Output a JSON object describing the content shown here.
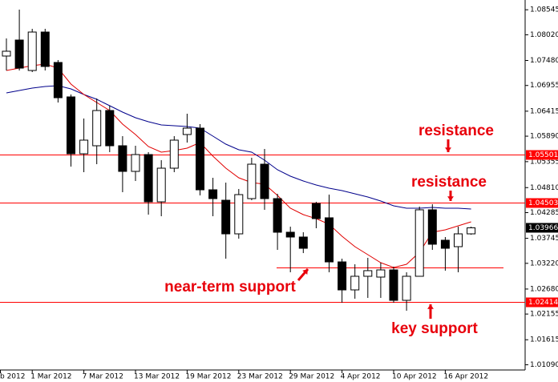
{
  "chart_data": {
    "type": "candlestick",
    "categories": [
      "b 2012",
      null,
      null,
      "1 Mar 2012",
      null,
      null,
      null,
      "7 Mar 2012",
      null,
      null,
      null,
      "13 Mar 2012",
      null,
      null,
      null,
      "19 Mar 2012",
      null,
      null,
      null,
      "23 Mar 2012",
      null,
      null,
      null,
      "29 Mar 2012",
      null,
      null,
      null,
      "4 Apr 2012",
      null,
      null,
      null,
      "10 Apr 2012",
      null,
      null,
      null,
      "16 Apr 2012",
      null,
      null
    ],
    "open": [
      null,
      1.07573,
      1.07909,
      1.0727,
      1.08077,
      1.07438,
      1.06715,
      1.05521,
      1.05689,
      1.06429,
      1.05689,
      1.05151,
      1.05504,
      1.04512,
      1.05218,
      1.05925,
      1.06059,
      1.04764,
      1.04545,
      1.03839,
      1.04579,
      1.05302,
      1.04579,
      1.03873,
      1.03772,
      1.04478,
      1.04176,
      1.0325,
      1.02662,
      1.02948,
      1.02931,
      1.03082,
      1.02443,
      1.02948,
      1.04344,
      1.03705,
      1.0357,
      1.03839
    ],
    "high": [
      null,
      1.07943,
      1.08548,
      1.08145,
      1.08145,
      1.07489,
      1.06765,
      1.06261,
      1.06681,
      1.0653,
      1.05891,
      1.05689,
      1.05555,
      1.05386,
      1.05891,
      1.06362,
      1.06143,
      1.05016,
      1.04915,
      1.04781,
      1.05437,
      1.05622,
      1.0468,
      1.0399,
      1.03873,
      1.04512,
      1.04663,
      1.03318,
      1.032,
      1.03335,
      1.03234,
      1.0315,
      1.03032,
      1.04411,
      1.04461,
      1.03772,
      1.0399,
      1.0399
    ],
    "low": [
      null,
      1.0727,
      1.0727,
      1.07236,
      1.0727,
      1.06597,
      1.05252,
      1.05134,
      1.05302,
      1.05555,
      1.04714,
      1.04949,
      1.04243,
      1.04209,
      1.05134,
      1.05756,
      1.04646,
      1.04209,
      1.03318,
      1.03738,
      1.04545,
      1.04344,
      1.03503,
      1.03032,
      1.03435,
      1.03957,
      1.03032,
      1.02393,
      1.02477,
      1.02494,
      1.02494,
      1.02393,
      1.02225,
      1.02948,
      1.03503,
      1.03066,
      1.03032,
      1.0382
    ],
    "close": [
      null,
      1.07674,
      1.0732,
      1.08077,
      1.07354,
      1.06698,
      1.05521,
      1.05807,
      1.06429,
      1.05689,
      1.05151,
      1.05504,
      1.04512,
      1.05218,
      1.05807,
      1.06059,
      1.04764,
      1.04579,
      1.03839,
      1.04663,
      1.05302,
      1.04579,
      1.03873,
      1.03772,
      1.03536,
      1.04159,
      1.0325,
      1.02662,
      1.02948,
      1.03066,
      1.03082,
      1.02443,
      1.02948,
      1.04344,
      1.03621,
      1.03536,
      1.03839,
      1.03966
    ],
    "overlays": [
      {
        "color": "#00008b",
        "values": [
          null,
          1.06799,
          1.0685,
          1.069,
          1.06934,
          1.0695,
          1.06883,
          1.06765,
          1.06665,
          1.0653,
          1.06395,
          1.06278,
          1.06194,
          1.06126,
          1.0611,
          1.06093,
          1.06059,
          1.05891,
          1.05723,
          1.05605,
          1.05555,
          1.05386,
          1.05185,
          1.0505,
          1.04949,
          1.04865,
          1.04798,
          1.04747,
          1.0468,
          1.04613,
          1.04529,
          1.04428,
          1.04377,
          1.04377,
          1.04394,
          1.04377,
          1.04377,
          1.0436
        ]
      },
      {
        "color": "#e00000",
        "values": [
          null,
          1.0727,
          1.0732,
          1.07371,
          1.07405,
          1.0732,
          1.06984,
          1.06765,
          1.06597,
          1.06429,
          1.06143,
          1.05925,
          1.05672,
          1.05555,
          1.05588,
          1.05639,
          1.05756,
          1.0547,
          1.05218,
          1.05016,
          1.04915,
          1.04882,
          1.04646,
          1.04377,
          1.04243,
          1.04159,
          1.04041,
          1.03789,
          1.0357,
          1.03402,
          1.03234,
          1.03133,
          1.032,
          1.03452,
          1.03873,
          1.03923,
          1.04007,
          1.04091
        ]
      }
    ],
    "levels": [
      1.05501,
      1.04503,
      1.02414
    ],
    "level_color": "#ff0000",
    "support_segment": 1.03133,
    "bid": 1.03966,
    "ylim": [
      1.0098,
      1.0875
    ],
    "yticks": [
      1.08545,
      {
        "value": 1.0802,
        "label": "1.08020"
      },
      {
        "value": 1.0748,
        "label": "1.07480"
      },
      1.06955,
      1.06415,
      {
        "value": 1.0589,
        "label": "1.05890"
      },
      1.05355,
      {
        "value": 1.0481,
        "label": "1.04810"
      },
      1.04285,
      1.03745,
      {
        "value": 1.0322,
        "label": "1.03220"
      },
      {
        "value": 1.0268,
        "label": "1.02680"
      },
      1.02155,
      1.01615,
      {
        "value": 1.0109,
        "label": "1.01090"
      }
    ],
    "annotations": [
      "resistance",
      "resistance",
      "near-term support",
      "key support"
    ]
  }
}
